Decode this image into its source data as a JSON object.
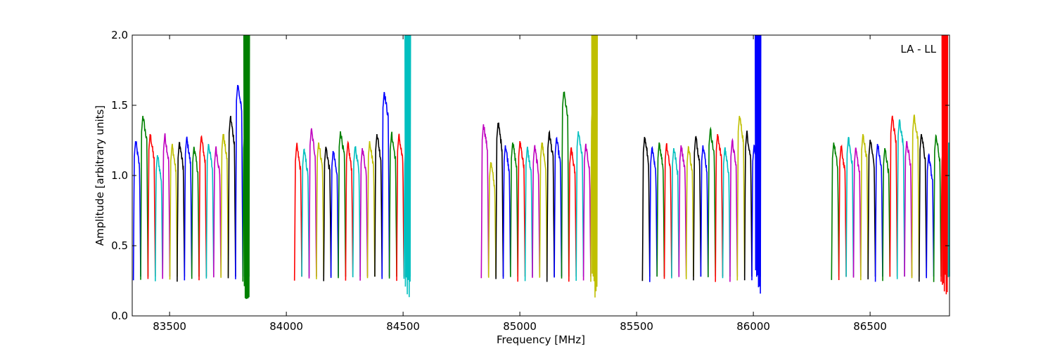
{
  "chart_data": {
    "type": "line",
    "title": "",
    "xlabel": "Frequency [MHz]",
    "ylabel": "Amplitude [arbitrary units]",
    "xlim": [
      83340,
      86840
    ],
    "ylim": [
      0.0,
      2.0
    ],
    "x_ticks": [
      83500,
      84000,
      84500,
      85000,
      85500,
      86000,
      86500
    ],
    "y_ticks": [
      0.0,
      0.5,
      1.0,
      1.5,
      2.0
    ],
    "x_tick_labels": [
      "83500",
      "84000",
      "84500",
      "85000",
      "85500",
      "86000",
      "86500"
    ],
    "y_tick_labels": [
      "0.0",
      "0.5",
      "1.0",
      "1.5",
      "2.0"
    ],
    "annotation": "LA - LL",
    "grid": false,
    "series_color_cycle": [
      "#0000ff",
      "#008000",
      "#ff0000",
      "#00bfbf",
      "#bf00bf",
      "#bfbf00",
      "#000000"
    ],
    "bands": [
      {
        "start": 83345,
        "end": 83840,
        "first_color_index": 0
      },
      {
        "start": 84035,
        "end": 84530,
        "first_color_index": 2
      },
      {
        "start": 84835,
        "end": 85330,
        "first_color_index": 4
      },
      {
        "start": 85525,
        "end": 86030,
        "first_color_index": 6
      },
      {
        "start": 86335,
        "end": 86840,
        "first_color_index": 1
      }
    ],
    "segment_width_mhz": 31.25,
    "segment_peak_values": [
      1.25,
      1.43,
      1.3,
      1.15,
      1.29,
      1.22,
      1.24,
      1.27,
      1.21,
      1.28,
      1.23,
      1.2,
      1.3,
      1.42,
      1.65,
      1.31,
      1.22,
      1.19,
      1.33,
      1.24,
      1.21,
      1.18,
      1.32,
      1.23,
      1.21,
      1.2,
      1.25,
      1.3,
      1.6,
      1.3,
      1.29,
      1.2,
      1.37,
      1.1,
      1.38,
      1.22,
      1.24,
      1.25,
      1.2,
      1.21,
      1.24,
      1.31,
      1.27,
      1.6,
      1.2,
      1.32,
      1.22,
      1.5,
      1.28,
      1.2,
      1.24,
      1.23,
      1.2,
      1.22,
      1.21,
      1.28,
      1.22,
      1.33,
      1.3,
      1.2,
      1.25,
      1.43,
      1.31,
      1.22,
      1.29,
      1.24,
      1.21,
      1.27,
      1.2,
      1.3,
      1.26,
      1.23,
      1.2,
      1.42,
      1.4
    ],
    "segment_low_value": 0.28,
    "spikes": [
      {
        "x": 83830,
        "min": 0.11,
        "max": 2.0,
        "color": "#008000"
      },
      {
        "x": 84520,
        "min": 0.13,
        "max": 2.0,
        "color": "#00bfbf"
      },
      {
        "x": 85320,
        "min": 0.13,
        "max": 2.0,
        "color": "#bfbf00"
      },
      {
        "x": 86020,
        "min": 0.15,
        "max": 2.0,
        "color": "#0000ff"
      },
      {
        "x": 86820,
        "min": 0.12,
        "max": 2.0,
        "color": "#ff0000"
      }
    ]
  }
}
